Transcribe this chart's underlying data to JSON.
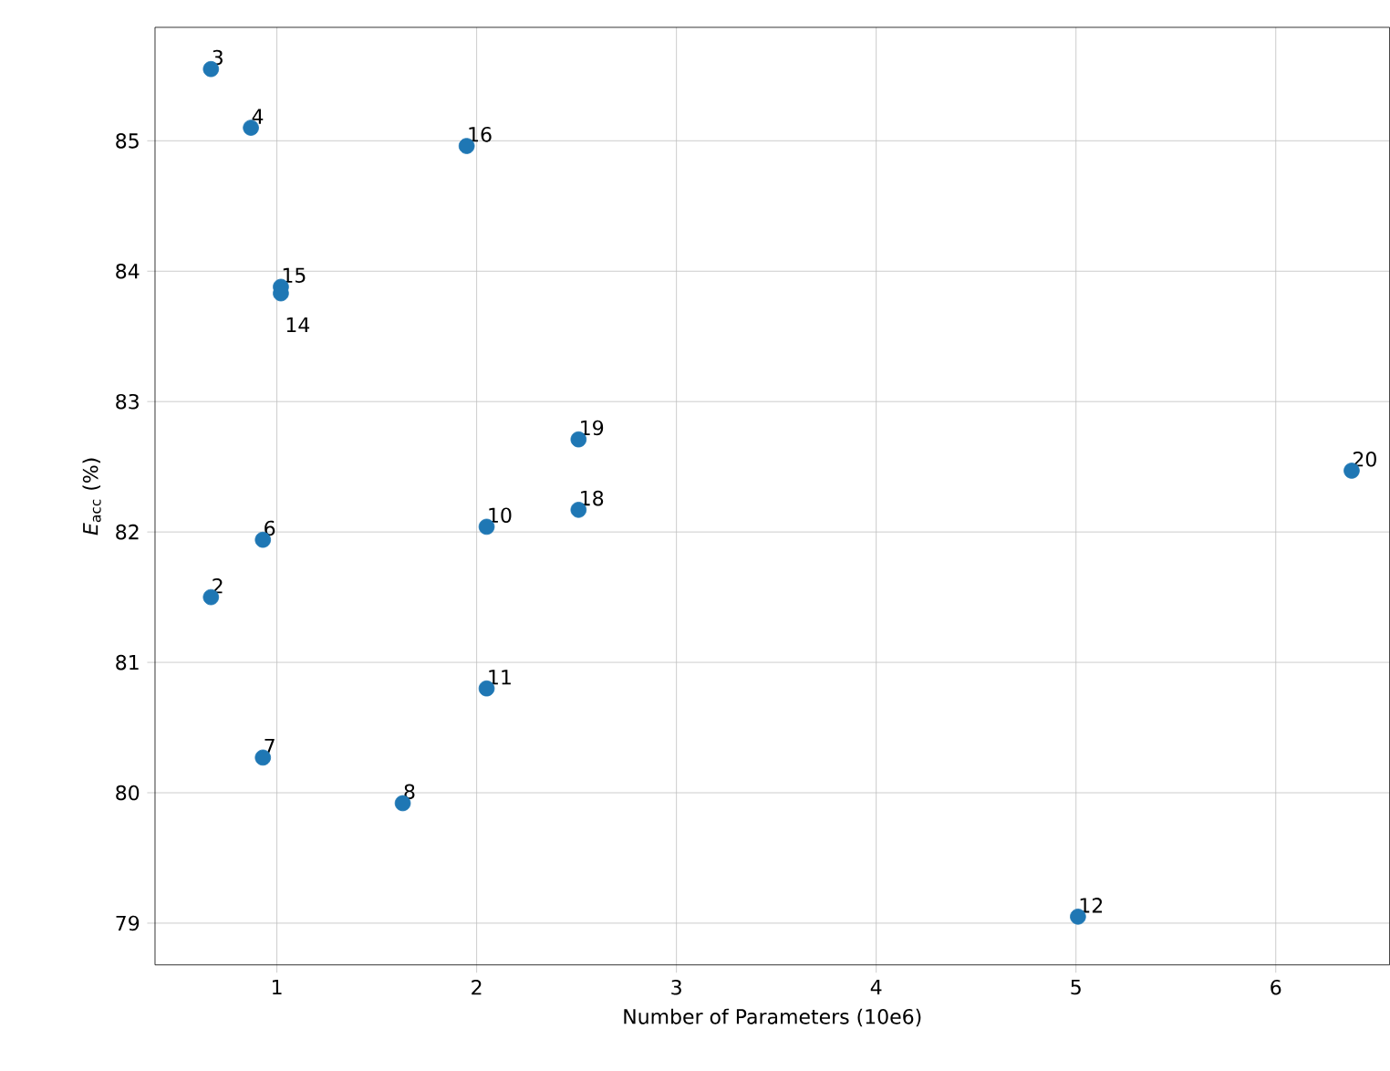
{
  "chart_data": {
    "type": "scatter",
    "xlabel": "Number of Parameters (10e6)",
    "ylabel": "*E*$_{acc}$ (%)",
    "color": "#1f77b4",
    "grid": true,
    "x": [
      0.67,
      0.87,
      1.95,
      1.02,
      1.02,
      2.51,
      6.38,
      2.51,
      2.05,
      0.93,
      0.67,
      2.05,
      0.93,
      1.63,
      5.01
    ],
    "values": [
      85.55,
      85.1,
      84.96,
      83.88,
      83.83,
      82.71,
      82.47,
      82.17,
      82.04,
      81.94,
      81.5,
      80.8,
      80.27,
      79.92,
      79.05
    ],
    "xlim": [
      0.39,
      6.57
    ],
    "ylim": [
      78.68,
      85.87
    ],
    "xticks": [
      1,
      2,
      3,
      4,
      5,
      6
    ],
    "yticks": [
      79,
      80,
      81,
      82,
      83,
      84,
      85
    ],
    "annotations": [
      {
        "text": "3",
        "x": 0.67,
        "y": 85.55
      },
      {
        "text": "4",
        "x": 0.87,
        "y": 85.1
      },
      {
        "text": "16",
        "x": 1.95,
        "y": 84.96
      },
      {
        "text": "15",
        "x": 1.02,
        "y": 83.88
      },
      {
        "text": "14",
        "x": 1.02,
        "y": 83.83
      },
      {
        "text": "19",
        "x": 2.51,
        "y": 82.71
      },
      {
        "text": "20",
        "x": 6.38,
        "y": 82.47
      },
      {
        "text": "18",
        "x": 2.51,
        "y": 82.17
      },
      {
        "text": "10",
        "x": 2.05,
        "y": 82.04
      },
      {
        "text": "6",
        "x": 0.93,
        "y": 81.94
      },
      {
        "text": "2",
        "x": 0.67,
        "y": 81.5
      },
      {
        "text": "11",
        "x": 2.05,
        "y": 80.8
      },
      {
        "text": "7",
        "x": 0.93,
        "y": 80.27
      },
      {
        "text": "8",
        "x": 1.63,
        "y": 79.92
      },
      {
        "text": "12",
        "x": 5.01,
        "y": 79.05
      }
    ]
  }
}
